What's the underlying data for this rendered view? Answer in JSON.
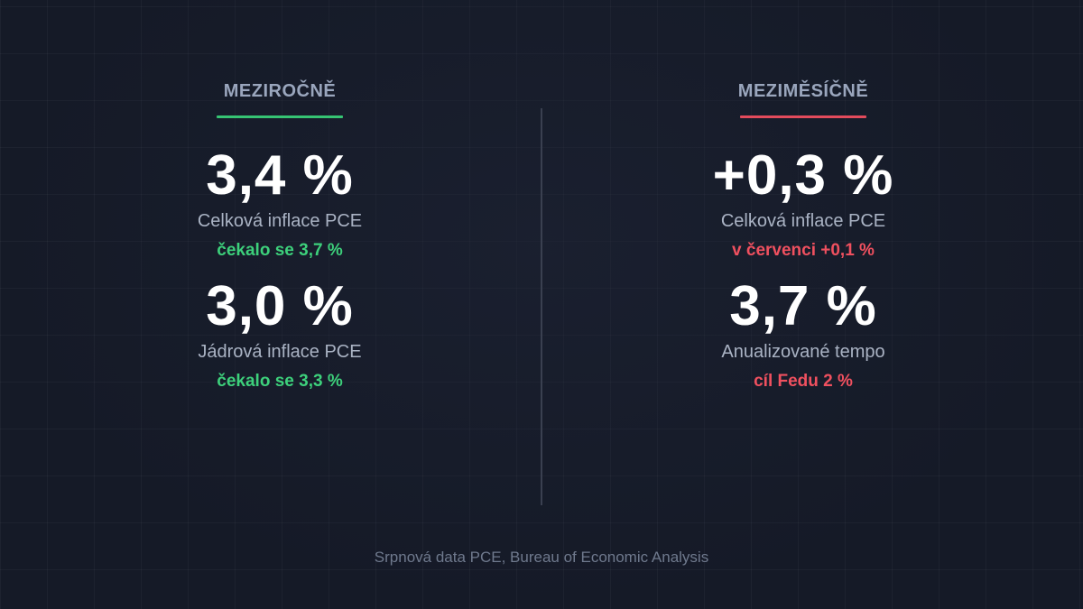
{
  "left": {
    "title": "MEZIROČNĚ",
    "accent": "#36c473",
    "metrics": [
      {
        "value": "3,4 %",
        "label": "Celková inflace PCE",
        "note": "čekalo se 3,7 %"
      },
      {
        "value": "3,0 %",
        "label": "Jádrová inflace PCE",
        "note": "čekalo se 3,3 %"
      }
    ]
  },
  "right": {
    "title": "MEZIMĚSÍČNĚ",
    "accent": "#e34b5c",
    "metrics": [
      {
        "value": "+0,3 %",
        "label": "Celková inflace PCE",
        "note": "v červenci +0,1 %"
      },
      {
        "value": "3,7 %",
        "label": "Anualizované tempo",
        "note": "cíl Fedu 2 %"
      }
    ]
  },
  "footer": "Srpnová data PCE, Bureau of Economic Analysis"
}
